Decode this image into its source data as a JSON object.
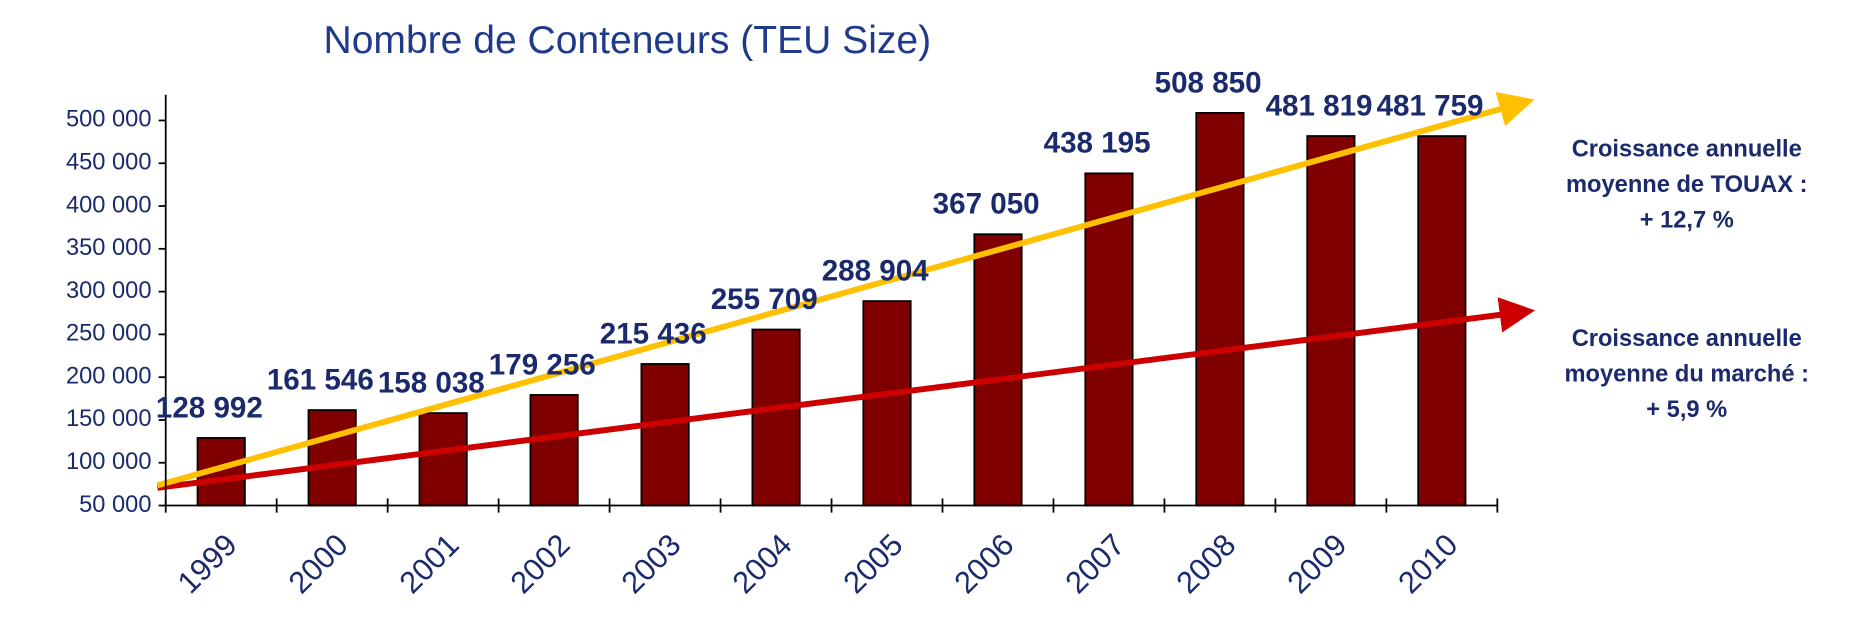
{
  "chart_data": {
    "type": "bar",
    "title": "Nombre de Conteneurs (TEU Size)",
    "categories": [
      "1999",
      "2000",
      "2001",
      "2002",
      "2003",
      "2004",
      "2005",
      "2006",
      "2007",
      "2008",
      "2009",
      "2010"
    ],
    "values": [
      128992,
      161546,
      158038,
      179256,
      215436,
      255709,
      288904,
      367050,
      438195,
      508850,
      481819,
      481759
    ],
    "value_labels": [
      "128 992",
      "161 546",
      "158 038",
      "179 256",
      "215 436",
      "255 709",
      "288 904",
      "367 050",
      "438 195",
      "508 850",
      "481 819",
      "481 759"
    ],
    "color": "#800000",
    "ylim": [
      50000,
      530000
    ],
    "yticks": [
      {
        "value": 50000,
        "label": "50 000"
      },
      {
        "value": 100000,
        "label": "100 000"
      },
      {
        "value": 150000,
        "label": "150 000"
      },
      {
        "value": 200000,
        "label": "200 000"
      },
      {
        "value": 250000,
        "label": "250 000"
      },
      {
        "value": 300000,
        "label": "300 000"
      },
      {
        "value": 350000,
        "label": "350 000"
      },
      {
        "value": 400000,
        "label": "400 000"
      },
      {
        "value": 450000,
        "label": "450 000"
      },
      {
        "value": 500000,
        "label": "500 000"
      }
    ],
    "grid": false,
    "annotations": [
      [
        "Croissance annuelle",
        "moyenne de TOUAX :",
        "+ 12,7 %"
      ],
      [
        "Croissance annuelle",
        "moyenne du marché :",
        "+ 5,9 %"
      ]
    ]
  }
}
